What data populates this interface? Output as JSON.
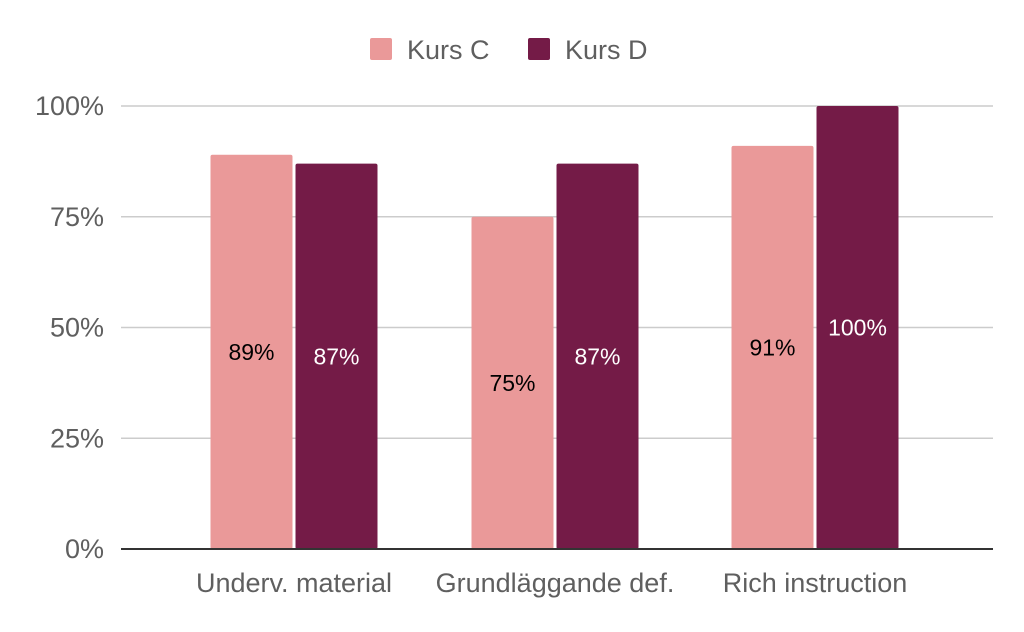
{
  "chart_data": {
    "type": "bar",
    "title": "",
    "xlabel": "",
    "ylabel": "",
    "categories": [
      "Underv. material",
      "Grundläggande def.",
      "Rich instruction"
    ],
    "series": [
      {
        "name": "Kurs C",
        "values": [
          89,
          75,
          91
        ],
        "labels": [
          "89%",
          "75%",
          "91%"
        ],
        "color": "#ea9999",
        "label_color": "#000000"
      },
      {
        "name": "Kurs D",
        "values": [
          87,
          87,
          100
        ],
        "labels": [
          "87%",
          "87%",
          "100%"
        ],
        "color": "#741b47",
        "label_color": "#ffffff"
      }
    ],
    "ylim": [
      0,
      100
    ],
    "yticks": [
      0,
      25,
      50,
      75,
      100
    ],
    "ytick_labels": [
      "0%",
      "25%",
      "50%",
      "75%",
      "100%"
    ],
    "grid": true,
    "legend": "top-center"
  }
}
